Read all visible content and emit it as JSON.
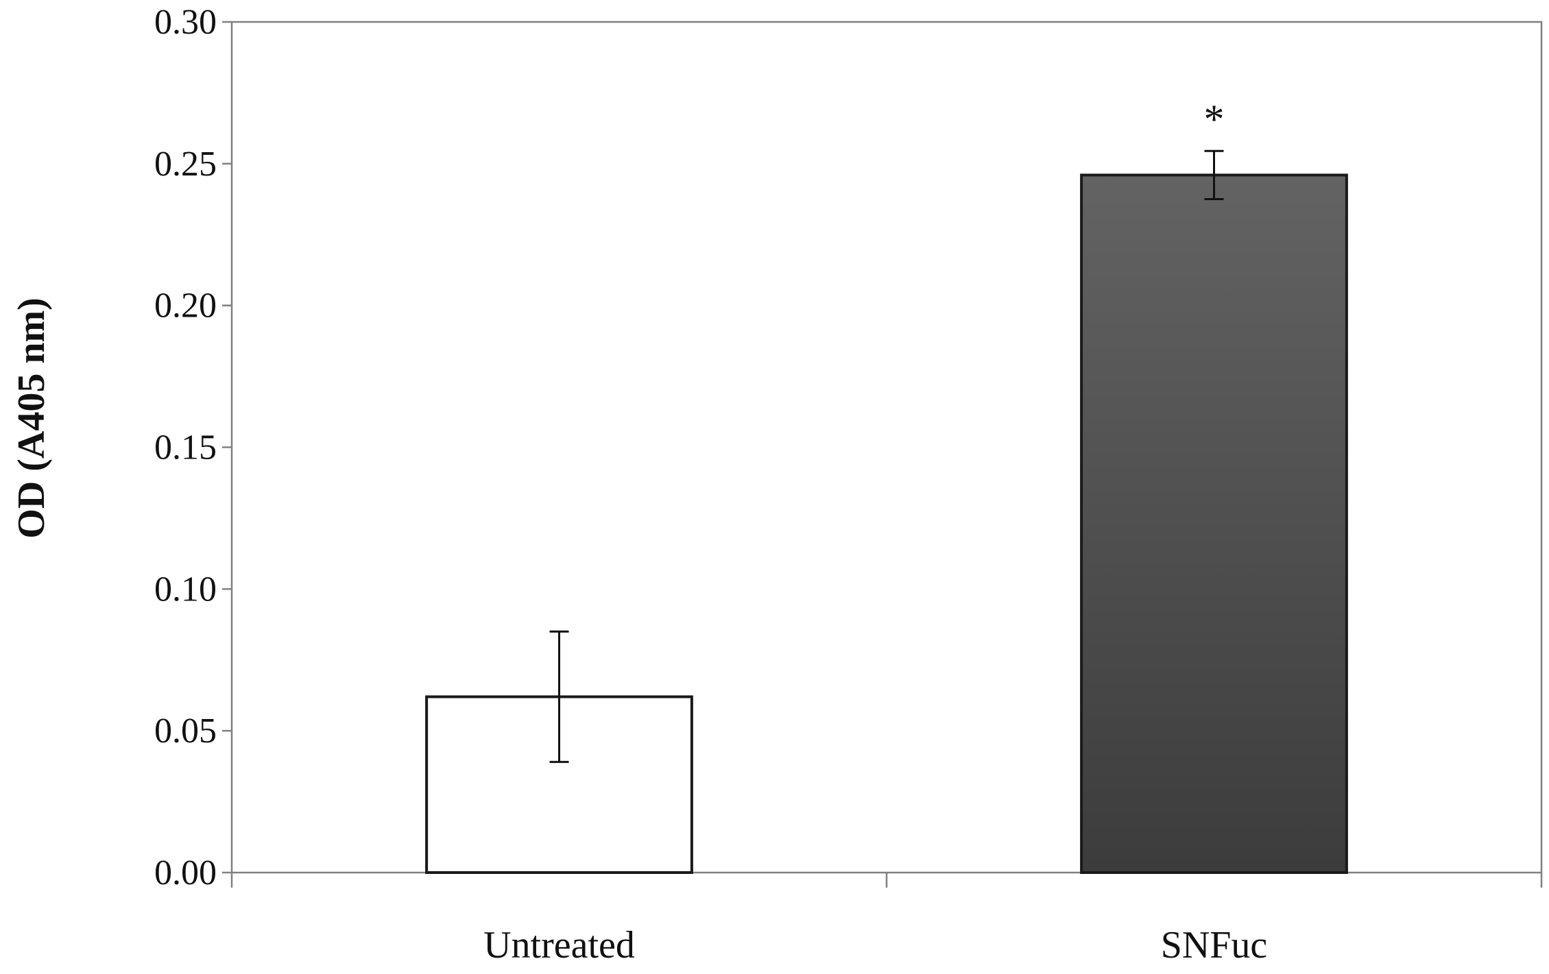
{
  "chart_data": {
    "type": "bar",
    "title": "",
    "xlabel": "",
    "ylabel": "OD (A405 nm)",
    "ylim": [
      0,
      0.3
    ],
    "yticks": [
      "0.00",
      "0.05",
      "0.10",
      "0.15",
      "0.20",
      "0.25",
      "0.30"
    ],
    "ytick_values": [
      0,
      0.05,
      0.1,
      0.15,
      0.2,
      0.25,
      0.3
    ],
    "categories": [
      "Untreated",
      "SNFuc"
    ],
    "values": [
      0.062,
      0.246
    ],
    "errors": [
      0.023,
      0.0085
    ],
    "annotations": [
      "",
      "*"
    ],
    "bar_colors": [
      "#ffffff",
      "#555555"
    ],
    "bar_edge_color": "#1a1a1a",
    "grid": false,
    "legend": "none"
  }
}
